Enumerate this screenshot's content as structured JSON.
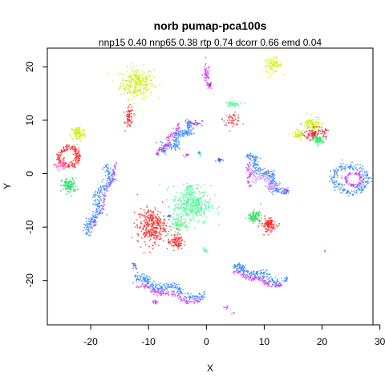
{
  "chart_data": {
    "type": "scatter",
    "title": "norb pumap-pca100s",
    "subtitle": "nnp15 0.40 nnp65 0.38 rtp 0.74 dcorr 0.66 emd 0.04",
    "xlabel": "X",
    "ylabel": "Y",
    "xlim": [
      -27.5,
      28.8
    ],
    "ylim": [
      -28.3,
      23.5
    ],
    "x_ticks": [
      -20,
      -10,
      0,
      10,
      20,
      30
    ],
    "y_ticks": [
      -20,
      -10,
      0,
      10,
      20
    ],
    "x_tick_labels": [
      "-20",
      "-10",
      "0",
      "10",
      "20",
      "30"
    ],
    "y_tick_labels": [
      "-20",
      "-10",
      "0",
      "10",
      "20"
    ],
    "grid": false,
    "legend": "none",
    "point_size": 0.9,
    "clusters": [
      {
        "shape": "blob",
        "color": "#c8f000",
        "cx": -12,
        "cy": 17,
        "rx": 2.6,
        "ry": 2.6,
        "n": 260
      },
      {
        "shape": "blob",
        "color": "#d8f400",
        "cx": 11.5,
        "cy": 20.3,
        "rx": 1.4,
        "ry": 1.2,
        "n": 90
      },
      {
        "shape": "blob",
        "color": "#cc44ee",
        "cx": 0,
        "cy": 18.5,
        "rx": 0.6,
        "ry": 1.8,
        "n": 50
      },
      {
        "shape": "blob",
        "color": "#c000e0",
        "cx": 0.5,
        "cy": 16.5,
        "rx": 0.4,
        "ry": 0.6,
        "n": 15
      },
      {
        "shape": "blob",
        "color": "#ff2020",
        "cx": -13.3,
        "cy": 10.5,
        "rx": 0.6,
        "ry": 1.8,
        "n": 60
      },
      {
        "shape": "blob",
        "color": "#ff4040",
        "cx": 4.5,
        "cy": 10.2,
        "rx": 1.4,
        "ry": 1.0,
        "n": 60
      },
      {
        "shape": "blob",
        "color": "#33ff88",
        "cx": 4.5,
        "cy": 13,
        "rx": 1.2,
        "ry": 0.4,
        "n": 40
      },
      {
        "shape": "blob",
        "color": "#c8f000",
        "cx": -22.2,
        "cy": 7.5,
        "rx": 1.2,
        "ry": 1.3,
        "n": 90
      },
      {
        "shape": "ring",
        "color": "#ff2020",
        "cx": -23.8,
        "cy": 3.2,
        "rx": 1.6,
        "ry": 1.7,
        "thick": 0.45,
        "n": 180
      },
      {
        "shape": "blob",
        "color": "#ff66cc",
        "cx": -25.3,
        "cy": 1.5,
        "rx": 0.9,
        "ry": 0.8,
        "n": 40
      },
      {
        "shape": "blob",
        "color": "#22dd66",
        "cx": -23.7,
        "cy": -2.3,
        "rx": 1.2,
        "ry": 1.3,
        "n": 110
      },
      {
        "shape": "band",
        "color": "#3388ff",
        "x1": -20.5,
        "y1": -11.5,
        "x2": -16.5,
        "y2": 1.5,
        "w": 0.9,
        "n": 240
      },
      {
        "shape": "band",
        "color": "#aa44ee",
        "x1": -19.5,
        "y1": -10.5,
        "x2": -15.5,
        "y2": 2.0,
        "w": 0.35,
        "n": 90
      },
      {
        "shape": "band",
        "color": "#3388ff",
        "x1": -7.5,
        "y1": 4,
        "x2": -2.5,
        "y2": 9.5,
        "w": 1.0,
        "n": 220
      },
      {
        "shape": "band",
        "color": "#cc44ee",
        "x1": -8.5,
        "y1": 3.5,
        "x2": -4.5,
        "y2": 9.2,
        "w": 0.4,
        "n": 90
      },
      {
        "shape": "blob",
        "color": "#aa44ee",
        "cx": -1.8,
        "cy": 9.5,
        "rx": 1.0,
        "ry": 0.5,
        "n": 30
      },
      {
        "shape": "blob",
        "color": "#3366ff",
        "cx": 2.3,
        "cy": 2.6,
        "rx": 0.5,
        "ry": 0.3,
        "n": 20
      },
      {
        "shape": "blob",
        "color": "#00ccaa",
        "cx": -1.3,
        "cy": 3.8,
        "rx": 0.3,
        "ry": 0.4,
        "n": 10
      },
      {
        "shape": "blob",
        "color": "#cc44ee",
        "cx": -3.5,
        "cy": 3.4,
        "rx": 0.4,
        "ry": 0.3,
        "n": 12
      },
      {
        "shape": "blob",
        "color": "#33ff88",
        "cx": -2.5,
        "cy": -5.8,
        "rx": 3.0,
        "ry": 3.2,
        "n": 360
      },
      {
        "shape": "blob",
        "color": "#66ee99",
        "cx": -4.8,
        "cy": -9.5,
        "rx": 1.5,
        "ry": 1.2,
        "n": 80
      },
      {
        "shape": "blob",
        "color": "#ff2020",
        "cx": -9.5,
        "cy": -9.8,
        "rx": 2.2,
        "ry": 3.0,
        "n": 320
      },
      {
        "shape": "blob",
        "color": "#ff2020",
        "cx": -5.3,
        "cy": -12.8,
        "rx": 1.2,
        "ry": 1.3,
        "n": 90
      },
      {
        "shape": "blob",
        "color": "#33ff88",
        "cx": -0.2,
        "cy": -14.3,
        "rx": 0.3,
        "ry": 0.4,
        "n": 10
      },
      {
        "shape": "band",
        "color": "#3388ff",
        "x1": 7.0,
        "y1": 3.5,
        "x2": 13.5,
        "y2": -4.0,
        "w": 1.0,
        "n": 240
      },
      {
        "shape": "band",
        "color": "#dd99ff",
        "x1": 7.0,
        "y1": 0.5,
        "x2": 12.5,
        "y2": -2.5,
        "w": 1.0,
        "n": 150
      },
      {
        "shape": "band",
        "color": "#cc44ee",
        "x1": 7.2,
        "y1": 3.0,
        "x2": 7.5,
        "y2": -2.5,
        "w": 0.3,
        "n": 40
      },
      {
        "shape": "blob",
        "color": "#aa44ee",
        "cx": 13.8,
        "cy": -3.2,
        "rx": 0.4,
        "ry": 0.6,
        "n": 20
      },
      {
        "shape": "ring",
        "color": "#3388ff",
        "cx": 25,
        "cy": -1,
        "rx": 2.8,
        "ry": 2.5,
        "thick": 0.4,
        "n": 220
      },
      {
        "shape": "ring",
        "color": "#cc44ee",
        "cx": 25.5,
        "cy": -1,
        "rx": 1.3,
        "ry": 1.2,
        "thick": 0.35,
        "n": 100
      },
      {
        "shape": "blob",
        "color": "#c8f000",
        "cx": 18.5,
        "cy": 9.2,
        "rx": 1.3,
        "ry": 1.3,
        "n": 90
      },
      {
        "shape": "blob",
        "color": "#ee2233",
        "cx": 18.7,
        "cy": 7.5,
        "rx": 1.8,
        "ry": 1.0,
        "n": 110
      },
      {
        "shape": "blob",
        "color": "#22ee66",
        "cx": 19.4,
        "cy": 6.3,
        "rx": 0.9,
        "ry": 0.8,
        "n": 60
      },
      {
        "shape": "blob",
        "color": "#c8f000",
        "cx": 15.8,
        "cy": 7.2,
        "rx": 0.9,
        "ry": 0.8,
        "n": 40
      },
      {
        "shape": "blob",
        "color": "#22dd55",
        "cx": 8.3,
        "cy": -8.0,
        "rx": 1.0,
        "ry": 1.0,
        "n": 90
      },
      {
        "shape": "blob",
        "color": "#ff2020",
        "cx": 10.8,
        "cy": -9.6,
        "rx": 1.2,
        "ry": 1.2,
        "n": 110
      },
      {
        "shape": "band",
        "color": "#3388ff",
        "x1": 4.5,
        "y1": -17.5,
        "x2": 13.8,
        "y2": -20.5,
        "w": 0.9,
        "n": 200
      },
      {
        "shape": "band",
        "color": "#cc44ee",
        "x1": 4.5,
        "y1": -18.3,
        "x2": 13.0,
        "y2": -21.2,
        "w": 0.5,
        "n": 120
      },
      {
        "shape": "band",
        "color": "#3388ff",
        "x1": -12.5,
        "y1": -19.5,
        "x2": -0.5,
        "y2": -23.5,
        "w": 1.0,
        "n": 240
      },
      {
        "shape": "band",
        "color": "#cc44ee",
        "x1": -12.0,
        "y1": -21.0,
        "x2": -1.0,
        "y2": -24.2,
        "w": 0.6,
        "n": 130
      },
      {
        "shape": "blob",
        "color": "#3366ff",
        "cx": -12.4,
        "cy": -17.2,
        "rx": 0.4,
        "ry": 0.5,
        "n": 15
      },
      {
        "shape": "blob",
        "color": "#cc44ee",
        "cx": -9.0,
        "cy": -24.0,
        "rx": 0.5,
        "ry": 0.3,
        "n": 15
      },
      {
        "shape": "blob",
        "color": "#cc44ee",
        "cx": 3.5,
        "cy": -25.0,
        "rx": 0.5,
        "ry": 0.4,
        "n": 8
      },
      {
        "shape": "blob",
        "color": "#ff66cc",
        "cx": 4.6,
        "cy": -26.0,
        "rx": 0.2,
        "ry": 0.4,
        "n": 5
      },
      {
        "shape": "blob",
        "color": "#33ff88",
        "cx": -3.0,
        "cy": -2.5,
        "rx": 0.5,
        "ry": 0.4,
        "n": 15
      },
      {
        "shape": "blob",
        "color": "#3366ff",
        "cx": -6.5,
        "cy": -8.0,
        "rx": 0.3,
        "ry": 0.3,
        "n": 8
      },
      {
        "shape": "blob",
        "color": "#ff2020",
        "cx": 20.5,
        "cy": -14.5,
        "rx": 0.15,
        "ry": 0.15,
        "n": 2
      }
    ]
  }
}
